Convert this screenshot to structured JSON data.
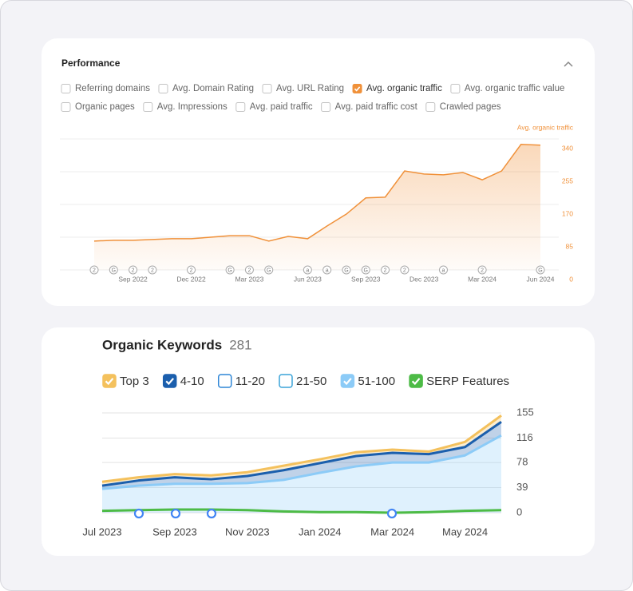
{
  "chart_data": [
    {
      "type": "area",
      "title": "Performance",
      "color": "#f0913a",
      "options": [
        [
          {
            "label": "Referring domains",
            "checked": false
          },
          {
            "label": "Avg. Domain Rating",
            "checked": false
          },
          {
            "label": "Avg. URL Rating",
            "checked": false
          },
          {
            "label": "Avg. organic traffic",
            "checked": true
          },
          {
            "label": "Avg. organic traffic value",
            "checked": false
          }
        ],
        [
          {
            "label": "Organic pages",
            "checked": false
          },
          {
            "label": "Avg. Impressions",
            "checked": false
          },
          {
            "label": "Avg. paid traffic",
            "checked": false
          },
          {
            "label": "Avg. paid traffic cost",
            "checked": false
          },
          {
            "label": "Crawled pages",
            "checked": false
          }
        ]
      ],
      "y_label": "Avg. organic traffic",
      "x": [
        "2022-07",
        "2022-08",
        "2022-09",
        "2022-10",
        "2022-11",
        "2022-12",
        "2023-01",
        "2023-02",
        "2023-03",
        "2023-04",
        "2023-05",
        "2023-06",
        "2023-07",
        "2023-08",
        "2023-09",
        "2023-10",
        "2023-11",
        "2023-12",
        "2024-01",
        "2024-02",
        "2024-03",
        "2024-04",
        "2024-05",
        "2024-06"
      ],
      "values": [
        75,
        77,
        77,
        79,
        81,
        81,
        85,
        89,
        89,
        75,
        87,
        81,
        114,
        145,
        187,
        189,
        257,
        249,
        247,
        253,
        234,
        257,
        326,
        324
      ],
      "xlim": [
        "2022-07",
        "2024-06"
      ],
      "xticks": [
        {
          "value": "2022-09",
          "label": "Sep 2022"
        },
        {
          "value": "2022-12",
          "label": "Dec 2022"
        },
        {
          "value": "2023-03",
          "label": "Mar 2023"
        },
        {
          "value": "2023-06",
          "label": "Jun 2023"
        },
        {
          "value": "2023-09",
          "label": "Sep 2023"
        },
        {
          "value": "2023-12",
          "label": "Dec 2023"
        },
        {
          "value": "2024-03",
          "label": "Mar 2024"
        },
        {
          "value": "2024-06",
          "label": "Jun 2024"
        }
      ],
      "ylim": [
        0,
        340
      ],
      "yticks": [
        0,
        85,
        170,
        255,
        340
      ],
      "grid": true,
      "annotations": [
        {
          "x": "2022-07",
          "label": "2"
        },
        {
          "x": "2022-08",
          "label": "G"
        },
        {
          "x": "2022-09",
          "label": "2"
        },
        {
          "x": "2022-10",
          "label": "2"
        },
        {
          "x": "2022-12",
          "label": "2"
        },
        {
          "x": "2023-02",
          "label": "G"
        },
        {
          "x": "2023-03",
          "label": "2"
        },
        {
          "x": "2023-04",
          "label": "G"
        },
        {
          "x": "2023-06",
          "label": "a"
        },
        {
          "x": "2023-07",
          "label": "a"
        },
        {
          "x": "2023-08",
          "label": "G"
        },
        {
          "x": "2023-09",
          "label": "G"
        },
        {
          "x": "2023-10",
          "label": "2"
        },
        {
          "x": "2023-11",
          "label": "2"
        },
        {
          "x": "2024-01",
          "label": "a"
        },
        {
          "x": "2024-03",
          "label": "2"
        },
        {
          "x": "2024-06",
          "label": "G"
        }
      ]
    },
    {
      "type": "area",
      "stacked": true,
      "title": "Organic Keywords",
      "count": 281,
      "x": [
        "2023-07",
        "2023-08",
        "2023-09",
        "2023-10",
        "2023-11",
        "2023-12",
        "2024-01",
        "2024-02",
        "2024-03",
        "2024-04",
        "2024-05",
        "2024-06"
      ],
      "series": [
        {
          "name": "Top 3",
          "color": "#f4c15d",
          "checked": true,
          "stack": true,
          "values": [
            6,
            5,
            5,
            6,
            6,
            7,
            6,
            6,
            5,
            4,
            8,
            10
          ]
        },
        {
          "name": "4-10",
          "color": "#1b5fad",
          "checked": true,
          "stack": true,
          "values": [
            5,
            8,
            10,
            7,
            11,
            15,
            15,
            16,
            15,
            13,
            13,
            21
          ]
        },
        {
          "name": "11-20",
          "color": "#2e86d6",
          "checked": false
        },
        {
          "name": "21-50",
          "color": "#3aa3d8",
          "checked": false
        },
        {
          "name": "51-100",
          "color": "#8ccbf7",
          "checked": true,
          "stack": true,
          "values": [
            37,
            42,
            45,
            45,
            46,
            51,
            62,
            72,
            78,
            78,
            89,
            120
          ]
        },
        {
          "name": "SERP Features",
          "color": "#4dbb46",
          "checked": true,
          "stack": false,
          "values": [
            3,
            4,
            5,
            5,
            4,
            2,
            1,
            1,
            0,
            1,
            3,
            4
          ]
        }
      ],
      "xlim": [
        "2023-07",
        "2024-06"
      ],
      "xticks": [
        {
          "value": "2023-07",
          "label": "Jul 2023"
        },
        {
          "value": "2023-09",
          "label": "Sep 2023"
        },
        {
          "value": "2023-11",
          "label": "Nov 2023"
        },
        {
          "value": "2024-01",
          "label": "Jan 2024"
        },
        {
          "value": "2024-03",
          "label": "Mar 2024"
        },
        {
          "value": "2024-05",
          "label": "May 2024"
        }
      ],
      "ylim": [
        0,
        155
      ],
      "yticks": [
        0,
        39,
        78,
        116,
        155
      ],
      "grid": true
    }
  ]
}
